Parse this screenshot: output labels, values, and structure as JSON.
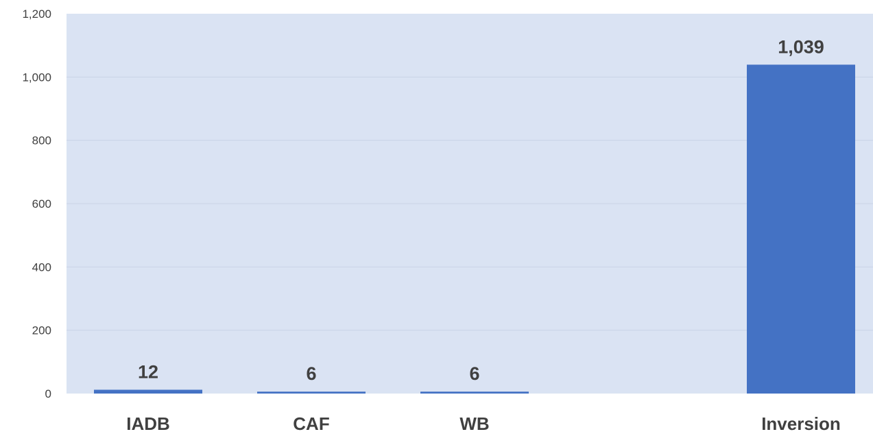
{
  "chart_data": {
    "type": "bar",
    "categories": [
      "IADB",
      "CAF",
      "WB",
      "",
      "Inversion"
    ],
    "values": [
      12,
      6,
      6,
      null,
      1039
    ],
    "data_labels": [
      "12",
      "6",
      "6",
      "",
      "1,039"
    ],
    "ylim": [
      0,
      1200
    ],
    "yticks": [
      0,
      200,
      400,
      600,
      800,
      1000,
      1200
    ],
    "ytick_labels": [
      "0",
      "200",
      "400",
      "600",
      "800",
      "1,000",
      "1,200"
    ],
    "grid": true,
    "legend": "none",
    "title": "",
    "xlabel": "",
    "ylabel": "",
    "colors": {
      "bar": "#4472C4",
      "plot_background": "#DAE3F3",
      "gridline": "#C9D3E6",
      "text": "#404040"
    }
  }
}
